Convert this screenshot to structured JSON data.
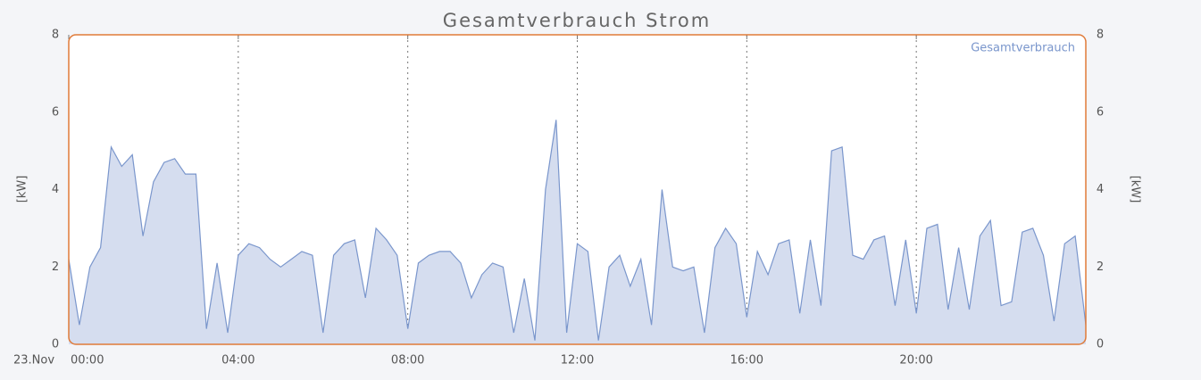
{
  "chart_data": {
    "type": "area",
    "title": "Gesamtverbrauch Strom",
    "date_label": "23.Nov",
    "ylabel": "[kW]",
    "y2label": "[kW]",
    "x": [
      0,
      0.25,
      0.5,
      0.75,
      1,
      1.25,
      1.5,
      1.75,
      2,
      2.25,
      2.5,
      2.75,
      3,
      3.25,
      3.5,
      3.75,
      4,
      4.25,
      4.5,
      4.75,
      5,
      5.25,
      5.5,
      5.75,
      6,
      6.25,
      6.5,
      6.75,
      7,
      7.25,
      7.5,
      7.75,
      8,
      8.25,
      8.5,
      8.75,
      9,
      9.25,
      9.5,
      9.75,
      10,
      10.25,
      10.5,
      10.75,
      11,
      11.25,
      11.5,
      11.75,
      12,
      12.25,
      12.5,
      12.75,
      13,
      13.25,
      13.5,
      13.75,
      14,
      14.25,
      14.5,
      14.75,
      15,
      15.25,
      15.5,
      15.75,
      16,
      16.25,
      16.5,
      16.75,
      17,
      17.25,
      17.5,
      17.75,
      18,
      18.25,
      18.5,
      18.75,
      19,
      19.25,
      19.5,
      19.75,
      20,
      20.25,
      20.5,
      20.75,
      21,
      21.25,
      21.5,
      21.75,
      22,
      22.25,
      22.5,
      22.75,
      23,
      23.25,
      23.5,
      23.75,
      24
    ],
    "series": [
      {
        "name": "Gesamtverbrauch",
        "color": "#7a96cc",
        "fill": "#d5ddef",
        "values": [
          2.2,
          0.5,
          2.0,
          2.5,
          5.1,
          4.6,
          4.9,
          2.8,
          4.2,
          4.7,
          4.8,
          4.4,
          4.4,
          0.4,
          2.1,
          0.3,
          2.3,
          2.6,
          2.5,
          2.2,
          2.0,
          2.2,
          2.4,
          2.3,
          0.3,
          2.3,
          2.6,
          2.7,
          1.2,
          3.0,
          2.7,
          2.3,
          0.4,
          2.1,
          2.3,
          2.4,
          2.4,
          2.1,
          1.2,
          1.8,
          2.1,
          2.0,
          0.3,
          1.7,
          0.1,
          4.0,
          5.8,
          0.3,
          2.6,
          2.4,
          0.1,
          2.0,
          2.3,
          1.5,
          2.2,
          0.5,
          4.0,
          2.0,
          1.9,
          2.0,
          0.3,
          2.5,
          3.0,
          2.6,
          0.7,
          2.4,
          1.8,
          2.6,
          2.7,
          0.8,
          2.7,
          1.0,
          5.0,
          5.1,
          2.3,
          2.2,
          2.7,
          2.8,
          1.0,
          2.7,
          0.8,
          3.0,
          3.1,
          0.9,
          2.5,
          0.9,
          2.8,
          3.2,
          1.0,
          1.1,
          2.9,
          3.0,
          2.3,
          0.6,
          2.6,
          2.8,
          0.5
        ]
      }
    ],
    "xlim": [
      0,
      24
    ],
    "xticks": [
      {
        "value": 0,
        "label": "00:00"
      },
      {
        "value": 4,
        "label": "04:00"
      },
      {
        "value": 8,
        "label": "08:00"
      },
      {
        "value": 12,
        "label": "12:00"
      },
      {
        "value": 16,
        "label": "16:00"
      },
      {
        "value": 20,
        "label": "20:00"
      }
    ],
    "ylim": [
      0,
      8
    ],
    "yticks": [
      0,
      2,
      4,
      6,
      8
    ],
    "y2lim": [
      0,
      8
    ],
    "y2ticks": [
      0,
      2,
      4,
      6,
      8
    ],
    "grid": true,
    "legend": "upper right",
    "border_color": "#e07b39"
  }
}
